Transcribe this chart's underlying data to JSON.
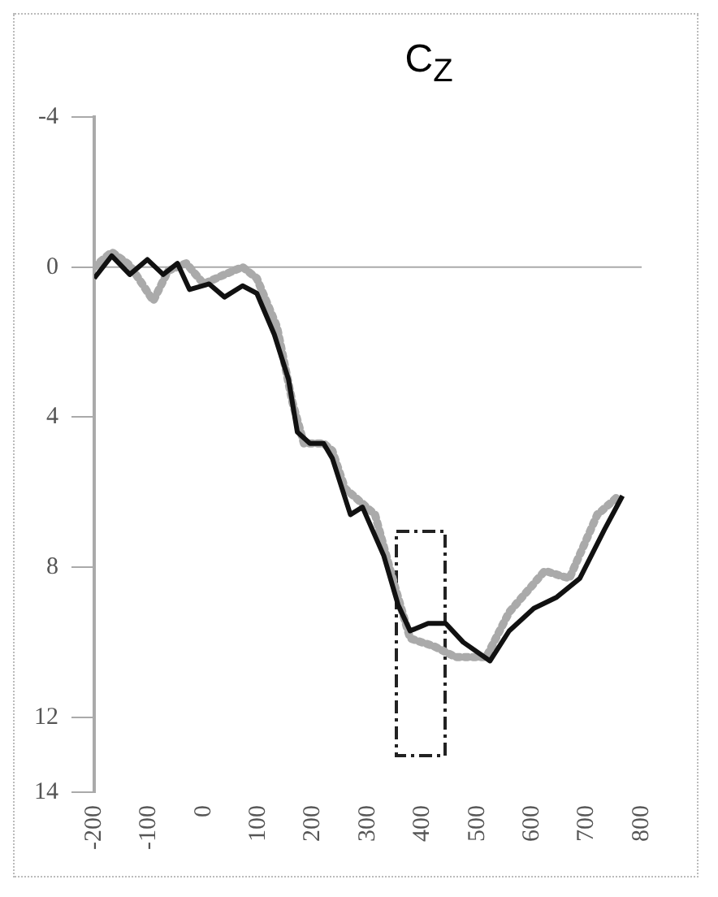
{
  "chart_data": {
    "type": "line",
    "title": "C$_{Z}$",
    "series": [
      {
        "color": "#aaaaaa",
        "line_style": "dotted",
        "x": [
          -200,
          -168,
          -135,
          -92,
          -65,
          -32,
          0,
          38,
          71,
          97,
          134,
          162,
          183,
          219,
          235,
          258,
          313,
          345,
          377,
          419,
          461,
          516,
          558,
          623,
          668,
          719,
          758
        ],
        "values": [
          0.0,
          -0.4,
          -0.05,
          0.9,
          0.1,
          -0.1,
          0.45,
          0.2,
          0.0,
          0.3,
          1.6,
          3.6,
          4.7,
          4.7,
          4.9,
          5.9,
          6.6,
          8.3,
          9.9,
          10.1,
          10.4,
          10.4,
          9.2,
          8.1,
          8.3,
          6.6,
          6.1
        ]
      },
      {
        "color": "#111111",
        "line_style": "solid",
        "x": [
          -200,
          -168,
          -135,
          -103,
          -74,
          -48,
          -26,
          10,
          38,
          71,
          97,
          129,
          155,
          171,
          194,
          219,
          235,
          268,
          290,
          329,
          355,
          377,
          410,
          442,
          474,
          523,
          558,
          603,
          645,
          687,
          732,
          765
        ],
        "values": [
          0.3,
          -0.3,
          0.2,
          -0.2,
          0.2,
          -0.1,
          0.6,
          0.45,
          0.8,
          0.5,
          0.7,
          1.8,
          3.0,
          4.4,
          4.7,
          4.7,
          5.1,
          6.6,
          6.4,
          7.7,
          9.0,
          9.7,
          9.5,
          9.5,
          10.0,
          10.5,
          9.7,
          9.1,
          8.8,
          8.3,
          7.0,
          6.1
        ]
      }
    ],
    "xlim": [
      -200,
      800
    ],
    "xticks": [
      -200,
      -100,
      0,
      100,
      200,
      300,
      400,
      500,
      600,
      700,
      800
    ],
    "ylim": [
      14,
      -4
    ],
    "yticks": [
      -4,
      0,
      4,
      8,
      12,
      14
    ],
    "ref_lines": [
      {
        "axis": "y",
        "value": 0,
        "color": "#aaaaaa"
      }
    ],
    "grid": false,
    "legend": false,
    "marker": "none"
  }
}
